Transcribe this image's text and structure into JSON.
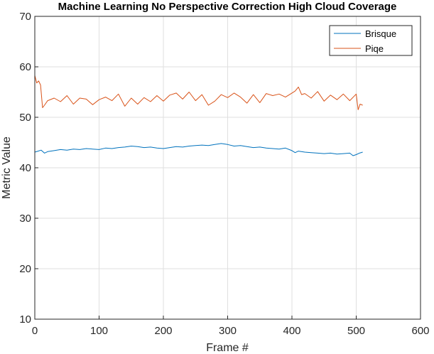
{
  "chart_data": {
    "type": "line",
    "title": "Machine Learning No Perspective Correction High Cloud Coverage",
    "xlabel": "Frame #",
    "ylabel": "Metric Value",
    "xlim": [
      0,
      600
    ],
    "ylim": [
      10,
      70
    ],
    "xticks": [
      0,
      100,
      200,
      300,
      400,
      500,
      600
    ],
    "yticks": [
      10,
      20,
      30,
      40,
      50,
      60,
      70
    ],
    "grid": true,
    "legend_position": "top-right",
    "series": [
      {
        "name": "Brisque",
        "color": "#0072BD",
        "x": [
          0,
          5,
          10,
          15,
          20,
          30,
          40,
          50,
          60,
          70,
          80,
          90,
          100,
          110,
          120,
          130,
          140,
          150,
          160,
          170,
          180,
          190,
          200,
          210,
          220,
          230,
          240,
          250,
          260,
          270,
          280,
          290,
          300,
          310,
          320,
          330,
          340,
          350,
          360,
          370,
          380,
          390,
          400,
          405,
          410,
          420,
          430,
          440,
          450,
          460,
          470,
          480,
          490,
          495,
          500,
          505,
          510
        ],
        "y": [
          43.1,
          43.3,
          43.5,
          42.9,
          43.2,
          43.4,
          43.6,
          43.5,
          43.7,
          43.6,
          43.8,
          43.7,
          43.6,
          43.9,
          43.8,
          44.0,
          44.1,
          44.3,
          44.2,
          44.0,
          44.1,
          43.9,
          43.8,
          44.0,
          44.2,
          44.1,
          44.3,
          44.4,
          44.5,
          44.4,
          44.6,
          44.8,
          44.6,
          44.3,
          44.4,
          44.2,
          44.0,
          44.1,
          43.9,
          43.8,
          43.7,
          43.9,
          43.4,
          43.0,
          43.3,
          43.1,
          43.0,
          42.9,
          42.8,
          42.9,
          42.7,
          42.8,
          42.9,
          42.4,
          42.6,
          42.9,
          43.1
        ]
      },
      {
        "name": "Piqe",
        "color": "#D95319",
        "x": [
          0,
          3,
          6,
          9,
          12,
          15,
          20,
          30,
          40,
          50,
          60,
          70,
          80,
          90,
          100,
          110,
          120,
          130,
          140,
          150,
          160,
          170,
          180,
          190,
          200,
          210,
          220,
          230,
          240,
          250,
          260,
          270,
          280,
          290,
          300,
          310,
          320,
          330,
          340,
          350,
          360,
          370,
          380,
          390,
          400,
          405,
          410,
          415,
          420,
          430,
          440,
          450,
          460,
          470,
          480,
          490,
          500,
          503,
          506,
          510
        ],
        "y": [
          58.3,
          56.8,
          57.2,
          56.4,
          51.9,
          52.4,
          53.3,
          53.8,
          53.1,
          54.3,
          52.6,
          53.8,
          53.6,
          52.5,
          53.5,
          54.0,
          53.3,
          54.6,
          52.2,
          53.8,
          52.6,
          53.9,
          53.1,
          54.3,
          53.2,
          54.4,
          54.8,
          53.6,
          55.0,
          53.3,
          54.5,
          52.4,
          53.2,
          54.5,
          53.9,
          54.8,
          54.0,
          52.8,
          54.5,
          52.9,
          54.7,
          54.3,
          54.6,
          54.0,
          54.8,
          55.2,
          56.0,
          54.5,
          54.7,
          53.8,
          55.1,
          53.2,
          54.4,
          53.5,
          54.6,
          53.3,
          54.6,
          51.5,
          52.6,
          52.4
        ]
      }
    ]
  }
}
